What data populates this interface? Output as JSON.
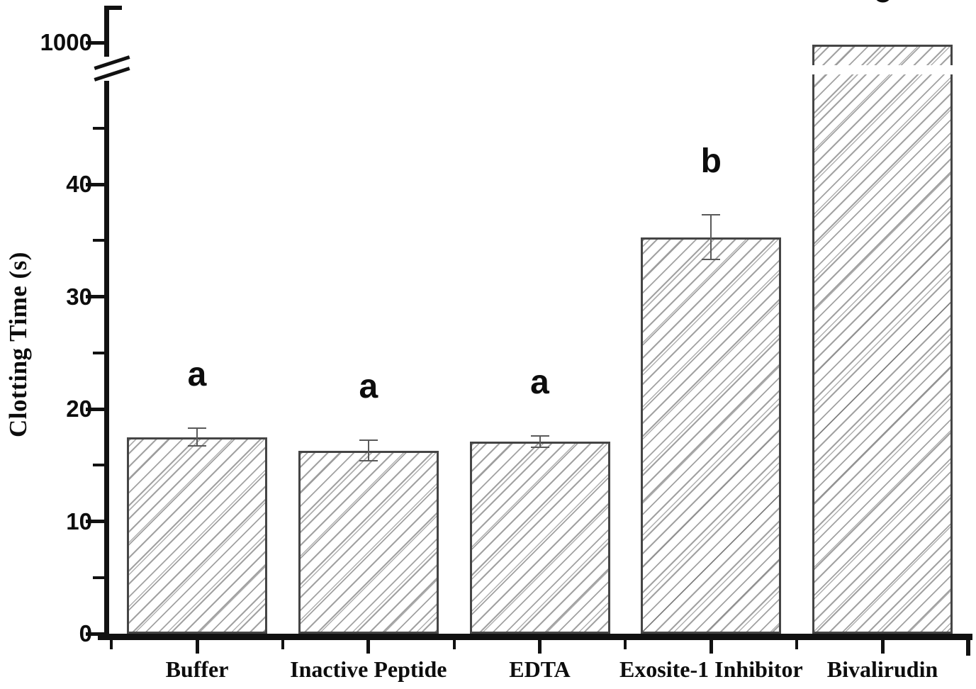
{
  "figure": {
    "background": "#ffffff"
  },
  "colors": {
    "ink": "#111111",
    "bar_outline": "#454545",
    "hatch_line": "#8f8f8f",
    "error_bar": "#5a5a5a",
    "background": "#ffffff"
  },
  "chart_data": {
    "type": "bar",
    "title": "",
    "xlabel": "",
    "ylabel": "Clotting Time (s)",
    "categories": [
      "Buffer",
      "Inactive Peptide",
      "EDTA",
      "Exosite-1 Inhibitor",
      "Bivalirudin"
    ],
    "values": [
      17.5,
      16.3,
      17.1,
      35.3,
      1000
    ],
    "errors": [
      0.8,
      0.9,
      0.5,
      2.0,
      null
    ],
    "significance_labels": [
      "a",
      "a",
      "a",
      "b",
      "c"
    ],
    "y_axis": {
      "tick_labels": [
        "0",
        "10",
        "20",
        "30",
        "40",
        "1000"
      ],
      "tick_values": [
        0,
        10,
        20,
        30,
        40,
        1000
      ],
      "minor_tick_values": [
        5,
        15,
        25,
        35,
        45
      ],
      "axis_break_between": [
        45,
        1000
      ],
      "lower_segment_range": [
        0,
        45
      ]
    },
    "style": {
      "bar_fill": "diagonal-hatch",
      "grid": false,
      "legend": null,
      "bars_broken_at_axis_break": [
        "Bivalirudin"
      ]
    }
  }
}
